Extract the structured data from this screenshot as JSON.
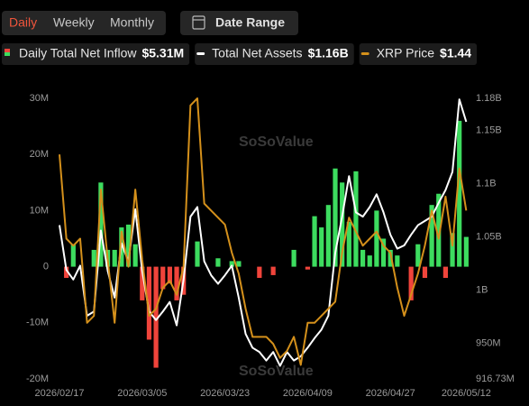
{
  "tabs": [
    "Daily",
    "Weekly",
    "Monthly"
  ],
  "active_tab": 0,
  "date_range": "Date Range",
  "watermark": "SoSoValue",
  "chart_data": {
    "type": "bar-line",
    "categories": [
      "2026/02/17",
      null,
      null,
      null,
      null,
      null,
      null,
      null,
      null,
      null,
      null,
      null,
      "2026/03/05",
      null,
      null,
      null,
      null,
      null,
      null,
      null,
      null,
      null,
      null,
      null,
      "2026/03/23",
      null,
      null,
      null,
      null,
      null,
      null,
      null,
      null,
      null,
      null,
      null,
      "2026/04/09",
      null,
      null,
      null,
      null,
      null,
      null,
      null,
      null,
      null,
      null,
      null,
      "2026/04/27",
      null,
      null,
      null,
      null,
      null,
      null,
      null,
      null,
      null,
      null,
      "2026/05/12"
    ],
    "series": [
      {
        "name": "Daily Total Net Inflow",
        "latest_label": "$5.31M",
        "type": "bar",
        "color": "#3ddc5f",
        "negative_color": "#f0443b",
        "axis": "y",
        "values": [
          0,
          -2,
          4,
          0,
          0,
          3,
          15,
          3,
          3,
          7,
          7.5,
          4,
          -6,
          -13,
          -18,
          -4,
          -3,
          -6,
          -5,
          0,
          4.5,
          0,
          0,
          1.5,
          0,
          1,
          1,
          0,
          0,
          -2,
          0,
          -1.5,
          0,
          0,
          3,
          0,
          -0.5,
          9,
          7,
          11,
          17.5,
          15,
          8,
          17,
          3,
          2,
          10,
          5,
          3,
          2,
          0,
          -6,
          4,
          -2,
          11,
          13,
          -2,
          6,
          26,
          5.31
        ]
      },
      {
        "name": "Total Net Assets",
        "latest_label": "$1.16B",
        "type": "line",
        "color": "#ffffff",
        "axis": "y2",
        "values": [
          1061,
          1019,
          1010,
          1023,
          976,
          980,
          1056,
          1018,
          993,
          1044,
          1027,
          1076,
          1018,
          980,
          972,
          980,
          989,
          967,
          1010,
          1069,
          1078,
          1027,
          1014,
          1006,
          1014,
          1023,
          993,
          959,
          946,
          942,
          934,
          942,
          929,
          942,
          934,
          938,
          946,
          955,
          963,
          976,
          1035,
          1069,
          1107,
          1073,
          1069,
          1078,
          1090,
          1073,
          1052,
          1039,
          1042,
          1052,
          1061,
          1065,
          1069,
          1082,
          1094,
          1111,
          1179,
          1158
        ]
      },
      {
        "name": "XRP Price",
        "latest_label": "$1.44",
        "type": "line",
        "color": "#d4901b",
        "axis": "y3",
        "values": [
          1.52,
          1.4,
          1.39,
          1.4,
          1.28,
          1.29,
          1.47,
          1.37,
          1.28,
          1.41,
          1.36,
          1.47,
          1.37,
          1.29,
          1.3,
          1.33,
          1.34,
          1.32,
          1.36,
          1.59,
          1.6,
          1.45,
          1.44,
          1.43,
          1.42,
          1.38,
          1.35,
          1.3,
          1.26,
          1.26,
          1.26,
          1.25,
          1.23,
          1.24,
          1.26,
          1.22,
          1.28,
          1.28,
          1.29,
          1.3,
          1.31,
          1.38,
          1.43,
          1.41,
          1.39,
          1.4,
          1.41,
          1.39,
          1.38,
          1.33,
          1.29,
          1.32,
          1.35,
          1.39,
          1.44,
          1.4,
          1.46,
          1.39,
          1.5,
          1.44
        ]
      }
    ],
    "ylim": [
      -20,
      30
    ],
    "yticks": [
      {
        "value": -20,
        "label": "-20M"
      },
      {
        "value": -10,
        "label": "-10M"
      },
      0,
      {
        "value": 10,
        "label": "10M"
      },
      {
        "value": 20,
        "label": "20M"
      },
      {
        "value": 30,
        "label": "30M"
      }
    ],
    "y2lim": [
      916.73,
      1180
    ],
    "y2ticks": [
      {
        "value": 916.73,
        "label": "916.73M"
      },
      {
        "value": 950,
        "label": "950M"
      },
      {
        "value": 1000,
        "label": "1B"
      },
      {
        "value": 1050,
        "label": "1.05B"
      },
      {
        "value": 1100,
        "label": "1.1B"
      },
      {
        "value": 1150,
        "label": "1.15B"
      },
      {
        "value": 1180,
        "label": "1.18B"
      }
    ],
    "y3lim": [
      1.2,
      1.6
    ],
    "grid": false
  }
}
